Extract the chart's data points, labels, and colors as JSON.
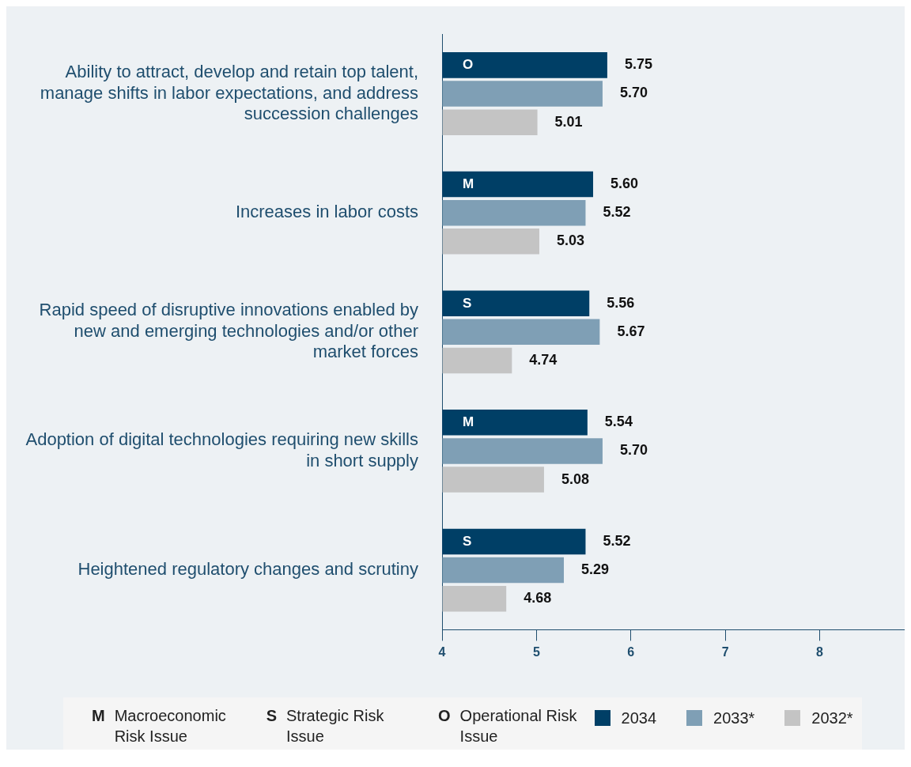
{
  "chart_data": {
    "type": "bar",
    "orientation": "horizontal",
    "categories": [
      "Ability to attract, develop and retain top talent, manage shifts in labor expectations, and address succession challenges",
      "Increases in labor costs",
      "Rapid speed of disruptive innovations enabled by new and emerging technologies and/or other market forces",
      "Adoption of digital technologies requiring new skills in short supply",
      "Heightened regulatory changes and scrutiny"
    ],
    "series": [
      {
        "name": "2034",
        "color": "#003f66",
        "values": [
          5.75,
          5.6,
          5.56,
          5.54,
          5.52
        ],
        "value_labels": [
          "5.75",
          "5.60",
          "5.56",
          "5.54",
          "5.52"
        ]
      },
      {
        "name": "2033*",
        "color": "#7f9fb5",
        "values": [
          5.7,
          5.52,
          5.67,
          5.7,
          5.29
        ],
        "value_labels": [
          "5.70",
          "5.52",
          "5.67",
          "5.70",
          "5.29"
        ]
      },
      {
        "name": "2032*",
        "color": "#c4c4c4",
        "values": [
          5.01,
          5.03,
          4.74,
          5.08,
          4.68
        ],
        "value_labels": [
          "5.01",
          "5.03",
          "4.74",
          "5.08",
          "4.68"
        ]
      }
    ],
    "xlim": [
      4,
      8.9
    ],
    "xticks": [
      4,
      5,
      6,
      7,
      8
    ],
    "grid": false,
    "legend": "bottom",
    "annotations": [
      "O",
      "M",
      "S",
      "M",
      "S",
      "M",
      "Macroeconomic Risk Issue",
      "S",
      "Strategic Risk Issue",
      "O",
      "Operational Risk Issue"
    ]
  }
}
